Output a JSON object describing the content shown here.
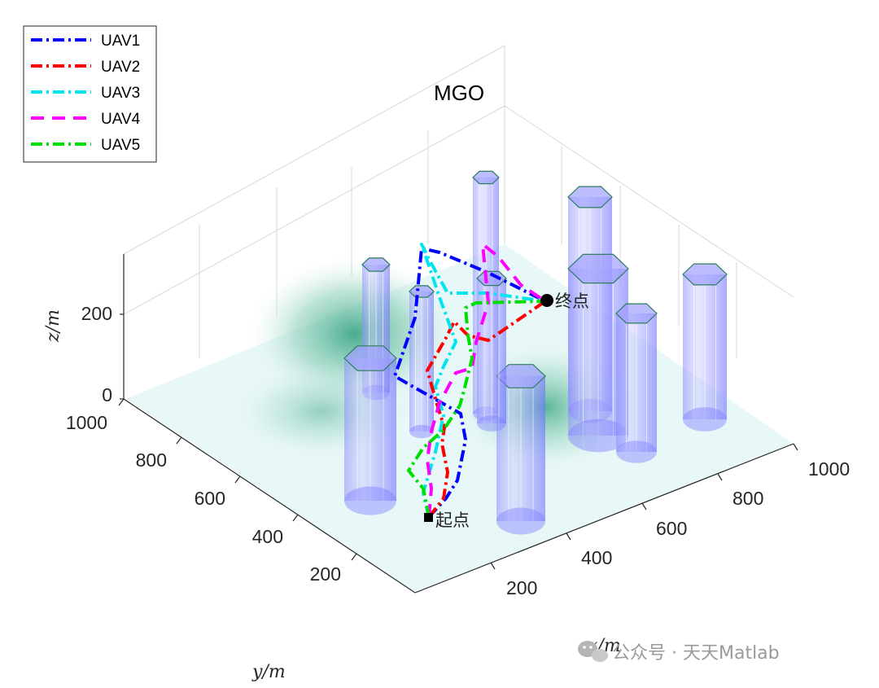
{
  "chart_data": {
    "type": "line",
    "title": "MGO",
    "xlabel": "x/m",
    "ylabel": "y/m",
    "zlabel": "z/m",
    "xlim": [
      0,
      1000
    ],
    "ylim": [
      0,
      1000
    ],
    "x_ticks": [
      "200",
      "400",
      "600",
      "800",
      "1000"
    ],
    "y_ticks": [
      "200",
      "400",
      "600",
      "800",
      "1000"
    ],
    "z_ticks": [
      "0",
      "200"
    ],
    "grid": true,
    "legend_position": "top-left",
    "start_label": "起点",
    "end_label": "终点",
    "series": [
      {
        "name": "UAV1",
        "color": "#0000ff",
        "dash": "14 5 3 5"
      },
      {
        "name": "UAV2",
        "color": "#ff0000",
        "dash": "14 5 3 5"
      },
      {
        "name": "UAV3",
        "color": "#00e5ee",
        "dash": "14 5 3 5"
      },
      {
        "name": "UAV4",
        "color": "#ff00ff",
        "dash": "16 10"
      },
      {
        "name": "UAV5",
        "color": "#00dd00",
        "dash": "14 5 3 5"
      }
    ]
  },
  "watermark": {
    "icon": "wechat-icon",
    "text": "公众号 · 天天Matlab"
  }
}
